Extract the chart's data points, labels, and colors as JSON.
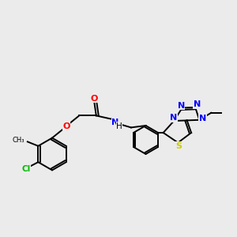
{
  "background_color": "#ebebeb",
  "bond_color": "#000000",
  "atom_colors": {
    "O": "#ff0000",
    "N": "#0000ff",
    "S": "#cccc00",
    "Cl": "#00bb00",
    "C": "#000000",
    "H": "#000000"
  },
  "lw": 1.4,
  "fs": 7.5
}
